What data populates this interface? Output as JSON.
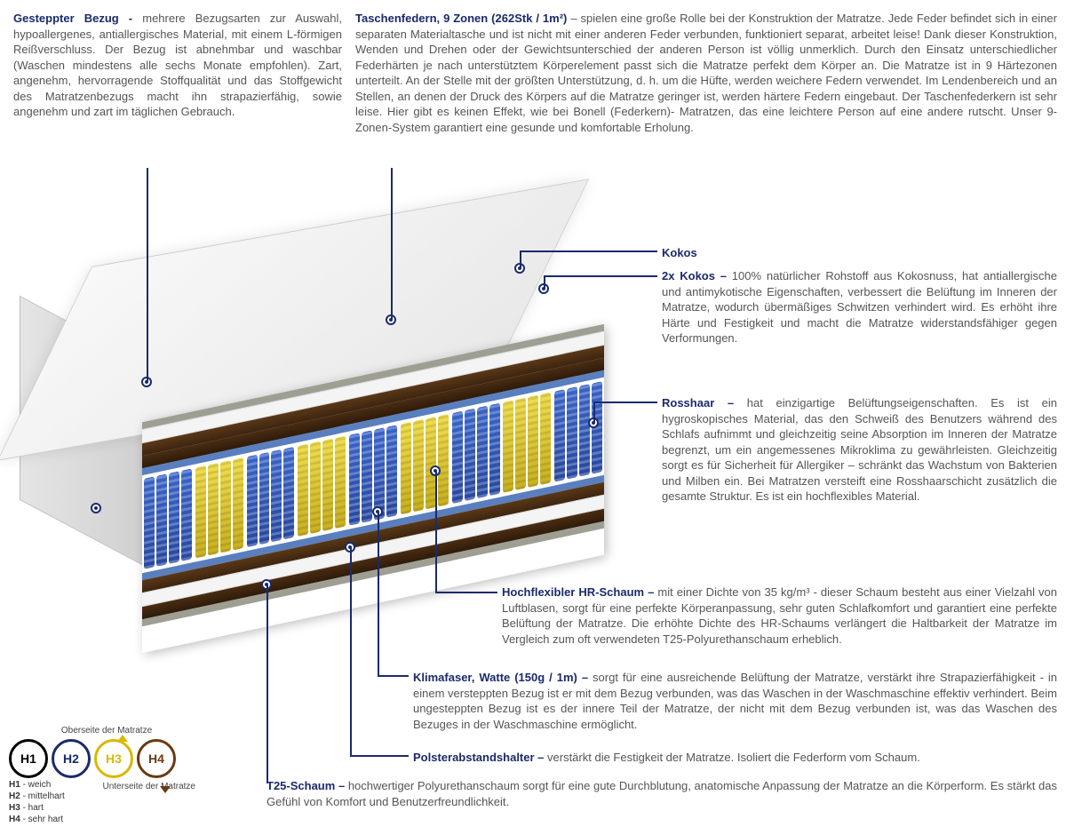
{
  "colors": {
    "heading": "#1a2a6c",
    "body": "#555555",
    "line": "#1a2a6c",
    "bg": "#ffffff"
  },
  "springs": {
    "zone_pattern": [
      "blue",
      "yellow",
      "blue",
      "yellow",
      "blue",
      "yellow",
      "blue",
      "yellow",
      "blue"
    ],
    "springs_per_zone_visual": 4,
    "colors": {
      "blue": "#3a64c8",
      "yellow": "#e2cf3a"
    }
  },
  "layers_top_to_bottom": [
    "grey_felt",
    "white_cover",
    "brown_kokos",
    "brown_kokos",
    "blue_thin",
    "springs_9_zone",
    "blue_thin",
    "brown_kokos",
    "white_foam",
    "brown_rosshaar",
    "grey_felt"
  ],
  "top_left": {
    "title": "Gesteppter Bezug -",
    "body": "mehrere Bezugsarten zur Auswahl, hypoallergenes, antiallergisches Material, mit einem L-förmigen Reißverschluss. Der Bezug ist abnehmbar und waschbar (Waschen mindestens alle sechs Monate empfohlen). Zart, angenehm, hervorragende Stoffqualität und das Stoffgewicht des Matratzenbezugs macht ihn strapazierfähig, sowie angenehm und zart im täglichen Gebrauch."
  },
  "top_right": {
    "title": "Taschenfedern, 9 Zonen (262Stk / 1m²)",
    "body": " – spielen eine große Rolle bei der Konstruktion der Matratze. Jede Feder befindet sich in einer separaten Materialtasche und ist nicht mit einer anderen Feder verbunden, funktioniert separat, arbeitet leise! Dank dieser Konstruktion, Wenden und Drehen oder der Gewichtsunterschied der anderen Person ist völlig unmerklich. Durch den Einsatz unterschiedlicher Federhärten je nach unterstütztem Körperelement passt sich die Matratze perfekt dem Körper an. Die Matratze ist in 9 Härtezonen unterteilt. An der Stelle mit der größten Unterstützung, d. h. um die Hüfte, werden weichere Federn verwendet. Im Lendenbereich und an Stellen, an denen der Druck des Körpers auf die Matratze geringer ist, werden härtere Federn eingebaut. Der Taschenfederkern ist sehr leise. Hier gibt es keinen Effekt, wie bei Bonell (Federkern)- Matratzen, das eine leichtere Person auf eine andere rutscht. Unser 9-Zonen-System garantiert eine gesunde und komfortable Erholung."
  },
  "callouts": {
    "kokos_single": {
      "title": "Kokos",
      "body": ""
    },
    "kokos_double": {
      "title": "2x Kokos –",
      "body": " 100% natürlicher Rohstoff aus Kokosnuss, hat antiallergische und antimykotische Eigenschaften, verbessert die Belüftung im Inneren der Matratze, wodurch übermäßiges Schwitzen verhindert wird. Es erhöht ihre Härte und Festigkeit und macht die Matratze widerstandsfähiger gegen Verformungen."
    },
    "rosshaar": {
      "title": "Rosshaar –",
      "body": " hat einzigartige Belüftungseigenschaften. Es ist ein hygroskopisches Material, das den Schweiß des Benutzers während des Schlafs aufnimmt und gleichzeitig seine Absorption im Inneren der Matratze begrenzt, um ein angemessenes Mikroklima zu gewährleisten. Gleichzeitig sorgt es für Sicherheit für Allergiker – schränkt das Wachstum von Bakterien und Milben ein. Bei Matratzen versteift eine Rosshaarschicht zusätzlich die gesamte Struktur. Es ist ein hochflexibles Material."
    },
    "hr_schaum": {
      "title": "Hochflexibler HR-Schaum –",
      "body": " mit einer Dichte von 35 kg/m³ - dieser Schaum besteht aus einer Vielzahl von Luftblasen, sorgt für eine perfekte Körperanpassung, sehr guten Schlafkomfort und garantiert eine perfekte Belüftung der Matratze. Die erhöhte Dichte des HR-Schaums verlängert die Haltbarkeit der Matratze im Vergleich zum oft verwendeten T25-Polyurethanschaum erheblich."
    },
    "klimafaser": {
      "title": "Klimafaser, Watte (150g / 1m) –",
      "body": " sorgt für eine ausreichende Belüftung der Matratze, verstärkt ihre Strapazierfähigkeit - in einem versteppten Bezug ist er mit dem Bezug verbunden, was das Waschen in der Waschmaschine effektiv verhindert. Beim ungesteppten Bezug ist es der innere Teil der Matratze, der nicht mit dem Bezug verbunden ist, was das Waschen des Bezuges in der Waschmaschine ermöglicht."
    },
    "polster": {
      "title": "Polsterabstandshalter –",
      "body": " verstärkt die Festigkeit der Matratze. Isoliert die Federform vom Schaum."
    },
    "t25": {
      "title": "T25-Schaum –",
      "body": " hochwertiger Polyurethanschaum sorgt für eine gute Durchblutung, anatomische Anpassung der Matratze an die Körperform. Es stärkt das Gefühl von Komfort und Benutzerfreundlichkeit."
    }
  },
  "legend": {
    "top_label": "Oberseite der Matratze",
    "bottom_label": "Unterseite der Matratze",
    "items": [
      {
        "code": "H1",
        "label": "weich",
        "border": "#000000",
        "text": "#000000"
      },
      {
        "code": "H2",
        "label": "mittelhart",
        "border": "#1a2a6c",
        "text": "#1a2a6c"
      },
      {
        "code": "H3",
        "label": "hart",
        "border": "#d8b800",
        "text": "#d8b800"
      },
      {
        "code": "H4",
        "label": "sehr hart",
        "border": "#6b3a10",
        "text": "#6b3a10"
      }
    ]
  }
}
